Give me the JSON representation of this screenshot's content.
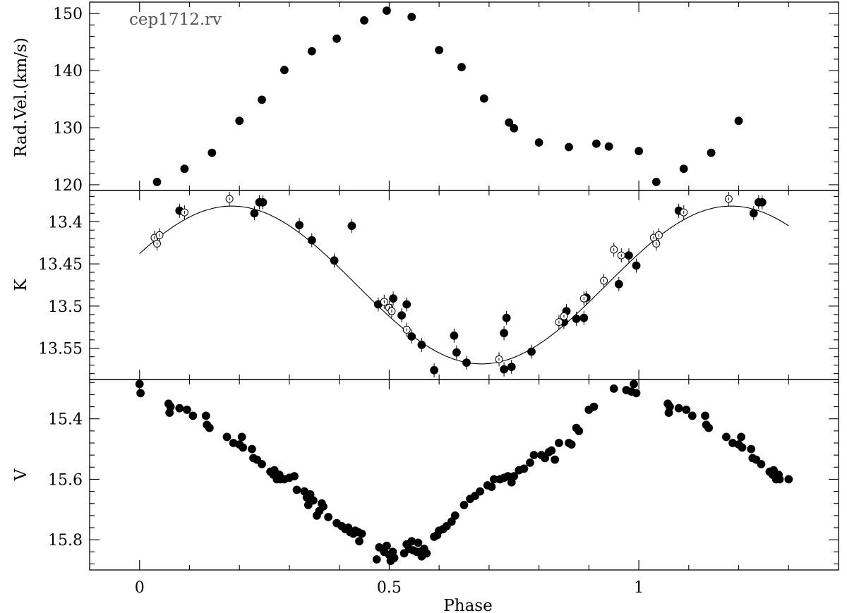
{
  "chart_data": {
    "type": "scatter",
    "xlabel": "Phase",
    "xlim": [
      -0.1,
      1.4
    ],
    "xticks": [
      0,
      0.5,
      1
    ],
    "xtick_labels": [
      "0",
      "0.5",
      "1"
    ],
    "annotation": "cep1712.rv",
    "panels": [
      {
        "id": "rv",
        "ylabel": "Rad.Vel.(km/s)",
        "ylim": [
          119,
          152
        ],
        "inverted": false,
        "yticks": [
          120,
          130,
          140,
          150
        ],
        "ytick_labels": [
          "120",
          "130",
          "140",
          "150"
        ],
        "series": [
          {
            "style": "filled",
            "points": [
              [
                0.035,
                120.5
              ],
              [
                0.09,
                122.8
              ],
              [
                0.145,
                125.6
              ],
              [
                0.2,
                131.2
              ],
              [
                0.245,
                134.9
              ],
              [
                0.29,
                140.1
              ],
              [
                0.345,
                143.4
              ],
              [
                0.395,
                145.6
              ],
              [
                0.45,
                148.8
              ],
              [
                0.495,
                150.5
              ],
              [
                0.545,
                149.4
              ],
              [
                0.6,
                143.6
              ],
              [
                0.645,
                140.6
              ],
              [
                0.69,
                135.1
              ],
              [
                0.74,
                130.9
              ],
              [
                0.75,
                129.9
              ],
              [
                0.8,
                127.4
              ],
              [
                0.86,
                126.6
              ],
              [
                0.915,
                127.2
              ],
              [
                0.94,
                126.7
              ],
              [
                1.0,
                125.9
              ],
              [
                1.035,
                120.5
              ],
              [
                1.09,
                122.8
              ],
              [
                1.145,
                125.6
              ],
              [
                1.2,
                131.2
              ]
            ]
          }
        ]
      },
      {
        "id": "K",
        "ylabel": "K",
        "ylim": [
          13.587,
          13.363
        ],
        "inverted": true,
        "yticks": [
          13.4,
          13.45,
          13.5,
          13.55
        ],
        "ytick_labels": [
          "13.4",
          "13.45",
          "13.5",
          "13.55"
        ],
        "series": [
          {
            "style": "filled",
            "points": [
              [
                0.08,
                13.387
              ],
              [
                0.23,
                13.39
              ],
              [
                0.24,
                13.377
              ],
              [
                0.247,
                13.377
              ],
              [
                0.32,
                13.404
              ],
              [
                0.345,
                13.422
              ],
              [
                0.39,
                13.446
              ],
              [
                0.425,
                13.405
              ],
              [
                0.478,
                13.498
              ],
              [
                0.508,
                13.491
              ],
              [
                0.525,
                13.511
              ],
              [
                0.535,
                13.498
              ],
              [
                0.545,
                13.536
              ],
              [
                0.565,
                13.546
              ],
              [
                0.59,
                13.576
              ],
              [
                0.63,
                13.535
              ],
              [
                0.635,
                13.555
              ],
              [
                0.655,
                13.567
              ],
              [
                0.73,
                13.532
              ],
              [
                0.735,
                13.514
              ],
              [
                0.73,
                13.575
              ],
              [
                0.745,
                13.572
              ],
              [
                0.785,
                13.554
              ],
              [
                0.85,
                13.519
              ],
              [
                0.855,
                13.506
              ],
              [
                0.875,
                13.515
              ],
              [
                0.89,
                13.514
              ],
              [
                0.895,
                13.49
              ],
              [
                0.98,
                13.44
              ],
              [
                0.995,
                13.452
              ],
              [
                0.96,
                13.474
              ],
              [
                1.08,
                13.387
              ],
              [
                1.23,
                13.39
              ],
              [
                1.24,
                13.377
              ],
              [
                1.247,
                13.377
              ]
            ]
          },
          {
            "style": "open",
            "points": [
              [
                0.03,
                13.419
              ],
              [
                0.035,
                13.426
              ],
              [
                0.04,
                13.416
              ],
              [
                0.09,
                13.389
              ],
              [
                0.18,
                13.373
              ],
              [
                0.49,
                13.495
              ],
              [
                0.5,
                13.502
              ],
              [
                0.505,
                13.506
              ],
              [
                0.535,
                13.528
              ],
              [
                0.72,
                13.563
              ],
              [
                0.84,
                13.519
              ],
              [
                0.85,
                13.512
              ],
              [
                0.89,
                13.491
              ],
              [
                0.93,
                13.47
              ],
              [
                0.95,
                13.433
              ],
              [
                0.965,
                13.44
              ],
              [
                1.03,
                13.419
              ],
              [
                1.035,
                13.426
              ],
              [
                1.04,
                13.416
              ],
              [
                1.09,
                13.389
              ],
              [
                1.18,
                13.373
              ]
            ]
          }
        ],
        "fit_curve": {
          "mean": 13.475,
          "amplitude": 0.0935,
          "phase_of_max": 0.185,
          "x_range": [
            0.0,
            1.3
          ]
        }
      },
      {
        "id": "V",
        "ylabel": "V",
        "ylim": [
          15.9,
          15.27
        ],
        "inverted": true,
        "yticks": [
          15.4,
          15.6,
          15.8
        ],
        "ytick_labels": [
          "15.4",
          "15.6",
          "15.8"
        ],
        "series": [
          {
            "style": "filled",
            "points": [
              [
                0.0,
                15.285
              ],
              [
                0.002,
                15.315
              ],
              [
                0.058,
                15.35
              ],
              [
                0.06,
                15.38
              ],
              [
                0.062,
                15.36
              ],
              [
                0.08,
                15.365
              ],
              [
                0.095,
                15.37
              ],
              [
                0.107,
                15.39
              ],
              [
                0.133,
                15.39
              ],
              [
                0.135,
                15.42
              ],
              [
                0.14,
                15.43
              ],
              [
                0.175,
                15.46
              ],
              [
                0.188,
                15.48
              ],
              [
                0.2,
                15.485
              ],
              [
                0.205,
                15.46
              ],
              [
                0.207,
                15.495
              ],
              [
                0.225,
                15.5
              ],
              [
                0.228,
                15.53
              ],
              [
                0.235,
                15.535
              ],
              [
                0.245,
                15.55
              ],
              [
                0.262,
                15.575
              ],
              [
                0.268,
                15.585
              ],
              [
                0.27,
                15.57
              ],
              [
                0.275,
                15.6
              ],
              [
                0.28,
                15.585
              ],
              [
                0.282,
                15.6
              ],
              [
                0.29,
                15.6
              ],
              [
                0.3,
                15.595
              ],
              [
                0.31,
                15.59
              ],
              [
                0.315,
                15.635
              ],
              [
                0.33,
                15.64
              ],
              [
                0.335,
                15.66
              ],
              [
                0.338,
                15.685
              ],
              [
                0.342,
                15.65
              ],
              [
                0.348,
                15.67
              ],
              [
                0.355,
                15.72
              ],
              [
                0.36,
                15.705
              ],
              [
                0.365,
                15.68
              ],
              [
                0.368,
                15.69
              ],
              [
                0.378,
                15.725
              ],
              [
                0.395,
                15.745
              ],
              [
                0.405,
                15.755
              ],
              [
                0.412,
                15.765
              ],
              [
                0.418,
                15.76
              ],
              [
                0.422,
                15.775
              ],
              [
                0.428,
                15.78
              ],
              [
                0.432,
                15.77
              ],
              [
                0.438,
                15.775
              ],
              [
                0.44,
                15.805
              ],
              [
                0.445,
                15.78
              ],
              [
                0.475,
                15.865
              ],
              [
                0.48,
                15.825
              ],
              [
                0.49,
                15.84
              ],
              [
                0.495,
                15.82
              ],
              [
                0.5,
                15.85
              ],
              [
                0.503,
                15.87
              ],
              [
                0.507,
                15.84
              ],
              [
                0.51,
                15.86
              ],
              [
                0.53,
                15.845
              ],
              [
                0.535,
                15.815
              ],
              [
                0.54,
                15.83
              ],
              [
                0.545,
                15.805
              ],
              [
                0.548,
                15.835
              ],
              [
                0.555,
                15.84
              ],
              [
                0.558,
                15.81
              ],
              [
                0.562,
                15.84
              ],
              [
                0.565,
                15.855
              ],
              [
                0.57,
                15.83
              ],
              [
                0.575,
                15.845
              ],
              [
                0.59,
                15.79
              ],
              [
                0.596,
                15.785
              ],
              [
                0.6,
                15.77
              ],
              [
                0.608,
                15.765
              ],
              [
                0.615,
                15.755
              ],
              [
                0.625,
                15.74
              ],
              [
                0.632,
                15.72
              ],
              [
                0.65,
                15.685
              ],
              [
                0.662,
                15.665
              ],
              [
                0.672,
                15.655
              ],
              [
                0.682,
                15.64
              ],
              [
                0.697,
                15.62
              ],
              [
                0.705,
                15.625
              ],
              [
                0.71,
                15.6
              ],
              [
                0.722,
                15.6
              ],
              [
                0.73,
                15.595
              ],
              [
                0.738,
                15.59
              ],
              [
                0.745,
                15.61
              ],
              [
                0.75,
                15.59
              ],
              [
                0.76,
                15.57
              ],
              [
                0.77,
                15.565
              ],
              [
                0.782,
                15.545
              ],
              [
                0.79,
                15.52
              ],
              [
                0.805,
                15.52
              ],
              [
                0.812,
                15.53
              ],
              [
                0.82,
                15.51
              ],
              [
                0.825,
                15.505
              ],
              [
                0.832,
                15.535
              ],
              [
                0.84,
                15.48
              ],
              [
                0.86,
                15.48
              ],
              [
                0.865,
                15.485
              ],
              [
                0.875,
                15.43
              ],
              [
                0.88,
                15.44
              ],
              [
                0.9,
                15.37
              ],
              [
                0.91,
                15.36
              ],
              [
                0.95,
                15.3
              ],
              [
                0.975,
                15.305
              ],
              [
                0.985,
                15.31
              ],
              [
                0.99,
                15.285
              ],
              [
                0.995,
                15.315
              ],
              [
                1.058,
                15.35
              ],
              [
                1.06,
                15.38
              ],
              [
                1.062,
                15.36
              ],
              [
                1.08,
                15.365
              ],
              [
                1.095,
                15.37
              ],
              [
                1.107,
                15.39
              ],
              [
                1.133,
                15.39
              ],
              [
                1.135,
                15.42
              ],
              [
                1.14,
                15.43
              ],
              [
                1.175,
                15.46
              ],
              [
                1.188,
                15.48
              ],
              [
                1.2,
                15.485
              ],
              [
                1.205,
                15.46
              ],
              [
                1.207,
                15.495
              ],
              [
                1.225,
                15.5
              ],
              [
                1.228,
                15.53
              ],
              [
                1.235,
                15.535
              ],
              [
                1.245,
                15.55
              ],
              [
                1.262,
                15.575
              ],
              [
                1.268,
                15.585
              ],
              [
                1.27,
                15.57
              ],
              [
                1.275,
                15.6
              ],
              [
                1.28,
                15.585
              ],
              [
                1.282,
                15.6
              ],
              [
                1.3,
                15.6
              ]
            ]
          }
        ]
      }
    ]
  }
}
